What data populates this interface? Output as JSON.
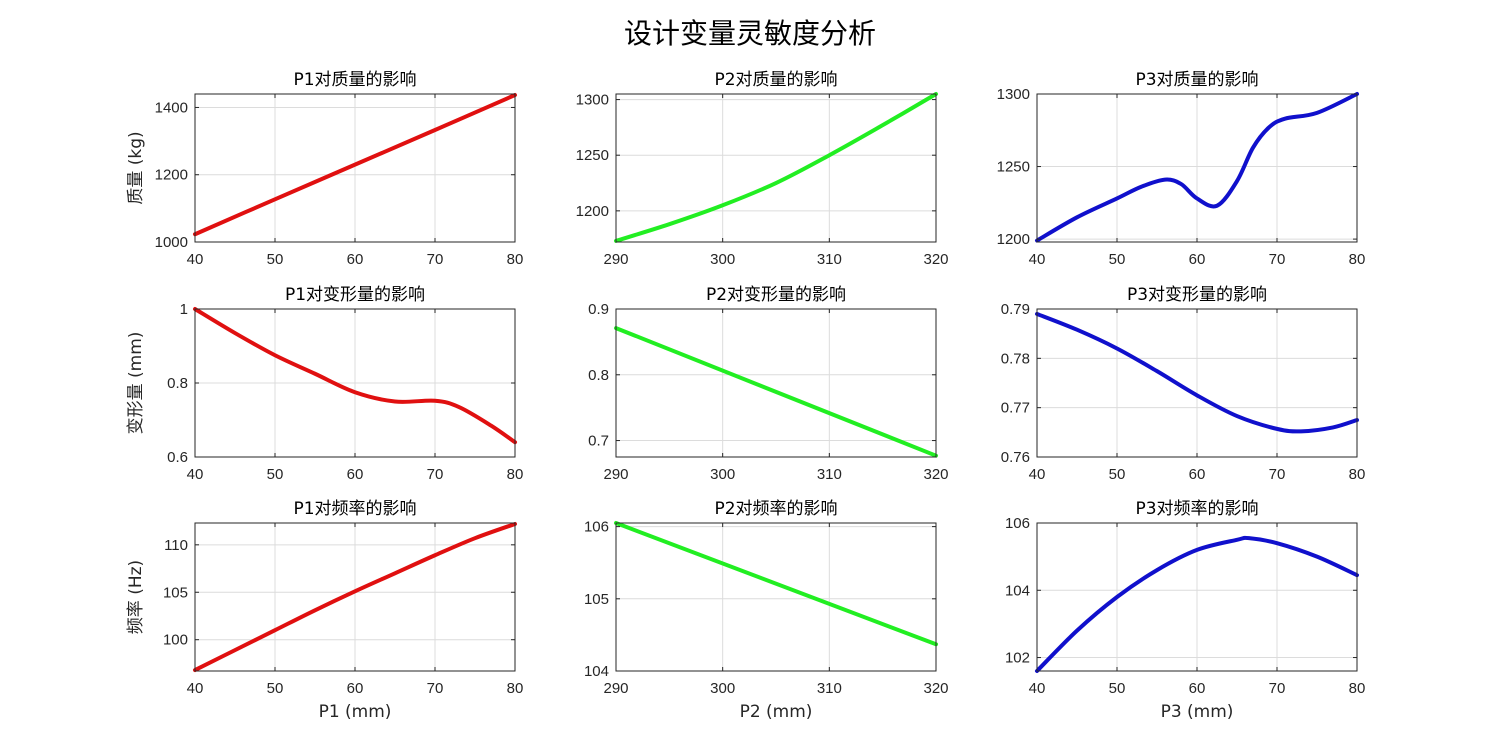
{
  "figure": {
    "title": "设计变量灵敏度分析"
  },
  "chart_data": [
    {
      "type": "line",
      "title": "P1对质量的影响",
      "xlabel": "",
      "ylabel": "质量 (kg)",
      "xlim": [
        40,
        80
      ],
      "ylim": [
        1000,
        1440
      ],
      "xticks": [
        40,
        50,
        60,
        70,
        80
      ],
      "yticks": [
        1000,
        1200,
        1400
      ],
      "grid": true,
      "color": "#e01010",
      "series": [
        {
          "x": [
            40,
            50,
            60,
            70,
            80
          ],
          "y": [
            1023,
            1127,
            1230,
            1333,
            1437
          ]
        }
      ]
    },
    {
      "type": "line",
      "title": "P2对质量的影响",
      "xlabel": "",
      "ylabel": "",
      "xlim": [
        290,
        320
      ],
      "ylim": [
        1172,
        1305
      ],
      "xticks": [
        290,
        300,
        310,
        320
      ],
      "yticks": [
        1200,
        1250,
        1300
      ],
      "grid": true,
      "color": "#22ee22",
      "series": [
        {
          "x": [
            290,
            295,
            300,
            305,
            310,
            315,
            320
          ],
          "y": [
            1173,
            1188,
            1205,
            1225,
            1250,
            1277,
            1305
          ]
        }
      ]
    },
    {
      "type": "line",
      "title": "P3对质量的影响",
      "xlabel": "",
      "ylabel": "",
      "xlim": [
        40,
        80
      ],
      "ylim": [
        1198,
        1300
      ],
      "xticks": [
        40,
        50,
        60,
        70,
        80
      ],
      "yticks": [
        1200,
        1250,
        1300
      ],
      "grid": true,
      "color": "#1010cc",
      "series": [
        {
          "x": [
            40,
            45,
            50,
            53,
            56,
            58,
            60,
            62.5,
            65,
            67,
            69,
            71,
            75,
            80
          ],
          "y": [
            1199,
            1215,
            1228,
            1236,
            1241,
            1238,
            1228,
            1223,
            1240,
            1263,
            1277,
            1283,
            1287,
            1300
          ]
        }
      ]
    },
    {
      "type": "line",
      "title": "P1对变形量的影响",
      "xlabel": "",
      "ylabel": "变形量 (mm)",
      "xlim": [
        40,
        80
      ],
      "ylim": [
        0.6,
        1.0
      ],
      "xticks": [
        40,
        50,
        60,
        70,
        80
      ],
      "yticks": [
        0.6,
        0.8,
        1
      ],
      "grid": true,
      "color": "#e01010",
      "series": [
        {
          "x": [
            40,
            45,
            50,
            55,
            60,
            65,
            70,
            73,
            77,
            80
          ],
          "y": [
            1.0,
            0.935,
            0.875,
            0.825,
            0.775,
            0.75,
            0.752,
            0.735,
            0.685,
            0.64
          ]
        }
      ]
    },
    {
      "type": "line",
      "title": "P2对变形量的影响",
      "xlabel": "",
      "ylabel": "",
      "xlim": [
        290,
        320
      ],
      "ylim": [
        0.675,
        0.9
      ],
      "xticks": [
        290,
        300,
        310,
        320
      ],
      "yticks": [
        0.7,
        0.8,
        0.9
      ],
      "grid": true,
      "color": "#22ee22",
      "series": [
        {
          "x": [
            290,
            320
          ],
          "y": [
            0.871,
            0.677
          ]
        }
      ]
    },
    {
      "type": "line",
      "title": "P3对变形量的影响",
      "xlabel": "",
      "ylabel": "",
      "xlim": [
        40,
        80
      ],
      "ylim": [
        0.76,
        0.79
      ],
      "xticks": [
        40,
        50,
        60,
        70,
        80
      ],
      "yticks": [
        0.76,
        0.77,
        0.78,
        0.79
      ],
      "grid": true,
      "color": "#1010cc",
      "series": [
        {
          "x": [
            40,
            45,
            50,
            55,
            60,
            65,
            70,
            73,
            77,
            80
          ],
          "y": [
            0.789,
            0.7858,
            0.782,
            0.7774,
            0.7725,
            0.7683,
            0.7657,
            0.7652,
            0.766,
            0.7675
          ]
        }
      ]
    },
    {
      "type": "line",
      "title": "P1对频率的影响",
      "xlabel": "P1 (mm)",
      "ylabel": "频率 (Hz)",
      "xlim": [
        40,
        80
      ],
      "ylim": [
        96.7,
        112.3
      ],
      "xticks": [
        40,
        50,
        60,
        70,
        80
      ],
      "yticks": [
        100,
        105,
        110
      ],
      "grid": true,
      "color": "#e01010",
      "series": [
        {
          "x": [
            40,
            45,
            50,
            55,
            60,
            65,
            70,
            75,
            80
          ],
          "y": [
            96.8,
            98.9,
            101.0,
            103.1,
            105.1,
            107.0,
            108.9,
            110.7,
            112.2
          ]
        }
      ]
    },
    {
      "type": "line",
      "title": "P2对频率的影响",
      "xlabel": "P2 (mm)",
      "ylabel": "",
      "xlim": [
        290,
        320
      ],
      "ylim": [
        104,
        106.05
      ],
      "xticks": [
        290,
        300,
        310,
        320
      ],
      "yticks": [
        104,
        105,
        106
      ],
      "grid": true,
      "color": "#22ee22",
      "series": [
        {
          "x": [
            290,
            320
          ],
          "y": [
            106.05,
            104.37
          ]
        }
      ]
    },
    {
      "type": "line",
      "title": "P3对频率的影响",
      "xlabel": "P3 (mm)",
      "ylabel": "",
      "xlim": [
        40,
        80
      ],
      "ylim": [
        101.6,
        106
      ],
      "xticks": [
        40,
        50,
        60,
        70,
        80
      ],
      "yticks": [
        102,
        104,
        106
      ],
      "grid": true,
      "color": "#1010cc",
      "series": [
        {
          "x": [
            40,
            45,
            50,
            55,
            60,
            65,
            66.5,
            70,
            75,
            80
          ],
          "y": [
            101.6,
            102.8,
            103.8,
            104.6,
            105.2,
            105.5,
            105.55,
            105.4,
            105.0,
            104.45
          ]
        }
      ]
    }
  ]
}
